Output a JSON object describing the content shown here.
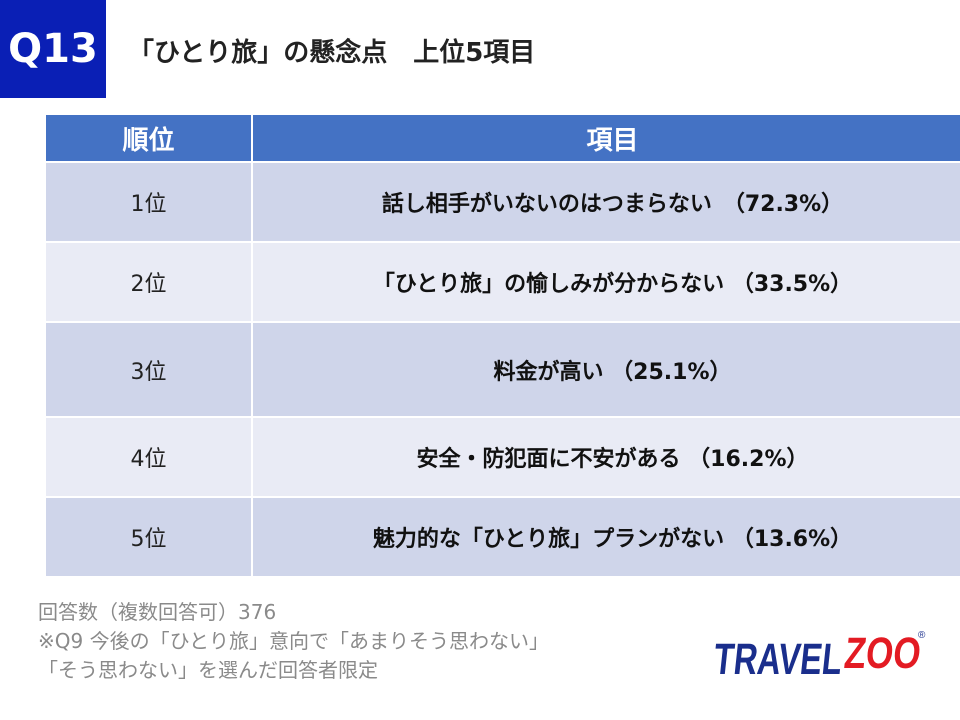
{
  "badge": "Q13",
  "title": "「ひとり旅」の懸念点　上位5項目",
  "table": {
    "headers": [
      "順位",
      "項目"
    ],
    "rows": [
      {
        "rank": "1位",
        "item": "話し相手がいないのはつまらない　（72.3%）"
      },
      {
        "rank": "2位",
        "item": "「ひとり旅」の愉しみが分からない （33.5%）"
      },
      {
        "rank": "3位",
        "item": "料金が高い （25.1%）"
      },
      {
        "rank": "4位",
        "item": "安全・防犯面に不安がある （16.2%）"
      },
      {
        "rank": "5位",
        "item": "魅力的な「ひとり旅」プランがない （13.6%）"
      }
    ]
  },
  "notes": [
    "回答数（複数回答可）376",
    "※Q9 今後の「ひとり旅」意向で「あまりそう思わない」",
    "「そう思わない」を選んだ回答者限定"
  ],
  "logo": {
    "text_left": "TRAVEL",
    "text_right": "ZOO",
    "registered": "®",
    "colors": {
      "blue": "#1a2e8c",
      "red": "#e31b23"
    }
  }
}
